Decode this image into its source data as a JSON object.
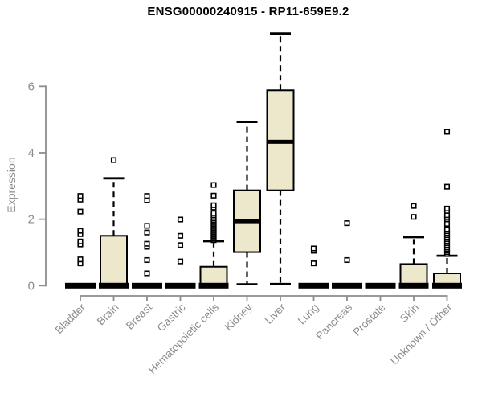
{
  "chart": {
    "title": "ENSG00000240915 - RP11-659E9.2",
    "ylabel": "Expression"
  },
  "chart_data": {
    "type": "boxplot",
    "title": "ENSG00000240915 - RP11-659E9.2",
    "xlabel": "",
    "ylabel": "Expression",
    "ylim": [
      0,
      7.6
    ],
    "yticks": [
      0,
      2,
      4,
      6
    ],
    "grid": false,
    "legend": "none",
    "box_fill": "#EDE7CC",
    "box_stroke": "#000000",
    "axis_color": "#8C8C8C",
    "categories": [
      "Bladder",
      "Brain",
      "Breast",
      "Gastric",
      "Hematopoietic cells",
      "Kidney",
      "Liver",
      "Lung",
      "Pancreas",
      "Prostate",
      "Skin",
      "Unknown / Other"
    ],
    "series": [
      {
        "category": "Bladder",
        "low": 0,
        "q1": 0,
        "median": 0,
        "q3": 0,
        "high": 0,
        "outliers": [
          0.67,
          0.79,
          1.24,
          1.33,
          1.55,
          1.65,
          2.23,
          2.59,
          2.7
        ]
      },
      {
        "category": "Brain",
        "low": 0,
        "q1": 0,
        "median": 0,
        "q3": 1.5,
        "high": 3.23,
        "outliers": [
          3.78
        ]
      },
      {
        "category": "Breast",
        "low": 0,
        "q1": 0,
        "median": 0,
        "q3": 0,
        "high": 0,
        "outliers": [
          0.37,
          0.77,
          1.17,
          1.26,
          1.6,
          1.8,
          2.57,
          2.7
        ]
      },
      {
        "category": "Gastric",
        "low": 0,
        "q1": 0,
        "median": 0,
        "q3": 0,
        "high": 0,
        "outliers": [
          0.73,
          1.22,
          1.5,
          1.99
        ]
      },
      {
        "category": "Hematopoietic cells",
        "low": 0,
        "q1": 0,
        "median": 0,
        "q3": 0.57,
        "high": 1.34,
        "outliers": [
          1.37,
          1.41,
          1.45,
          1.49,
          1.53,
          1.57,
          1.61,
          1.65,
          1.69,
          1.73,
          1.77,
          1.81,
          1.85,
          1.89,
          1.93,
          1.97,
          2.02,
          2.07,
          2.12,
          2.18,
          2.35,
          2.42,
          2.71,
          3.03
        ]
      },
      {
        "category": "Kidney",
        "low": 0.04,
        "q1": 1.01,
        "median": 1.94,
        "q3": 2.87,
        "high": 4.93,
        "outliers": []
      },
      {
        "category": "Liver",
        "low": 0.05,
        "q1": 2.87,
        "median": 4.33,
        "q3": 5.88,
        "high": 7.59,
        "outliers": []
      },
      {
        "category": "Lung",
        "low": 0,
        "q1": 0,
        "median": 0,
        "q3": 0,
        "high": 0,
        "outliers": [
          0.67,
          1.05,
          1.12
        ]
      },
      {
        "category": "Pancreas",
        "low": 0,
        "q1": 0,
        "median": 0,
        "q3": 0,
        "high": 0,
        "outliers": [
          0.77,
          1.88
        ]
      },
      {
        "category": "Prostate",
        "low": 0,
        "q1": 0,
        "median": 0,
        "q3": 0,
        "high": 0,
        "outliers": []
      },
      {
        "category": "Skin",
        "low": 0,
        "q1": 0,
        "median": 0,
        "q3": 0.65,
        "high": 1.46,
        "outliers": [
          2.07,
          2.4
        ]
      },
      {
        "category": "Unknown / Other",
        "low": 0,
        "q1": 0,
        "median": 0,
        "q3": 0.37,
        "high": 0.9,
        "outliers": [
          0.95,
          1.0,
          1.05,
          1.1,
          1.15,
          1.22,
          1.28,
          1.34,
          1.4,
          1.46,
          1.52,
          1.58,
          1.64,
          1.7,
          1.86,
          2.0,
          2.06,
          2.12,
          2.25,
          2.32,
          2.98,
          4.63
        ]
      }
    ]
  }
}
